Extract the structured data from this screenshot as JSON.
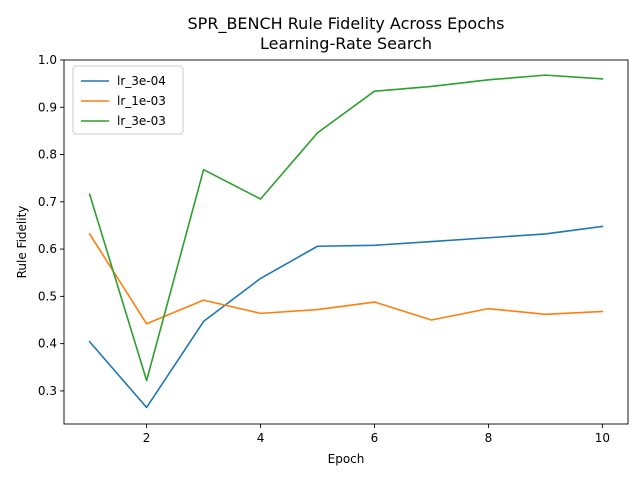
{
  "chart_data": {
    "type": "line",
    "title": "SPR_BENCH Rule Fidelity Across Epochs",
    "subtitle": "Learning-Rate Search",
    "xlabel": "Epoch",
    "ylabel": "Rule Fidelity",
    "xlim": [
      0.55,
      10.45
    ],
    "ylim": [
      0.23,
      1.0
    ],
    "xticks": [
      2,
      4,
      6,
      8,
      10
    ],
    "yticks": [
      0.3,
      0.4,
      0.5,
      0.6,
      0.7,
      0.8,
      0.9,
      1.0
    ],
    "grid": false,
    "legend_position": "top-left",
    "x": [
      1,
      2,
      3,
      4,
      5,
      6,
      7,
      8,
      9,
      10
    ],
    "series": [
      {
        "name": "lr_3e-04",
        "color": "#1f77b4",
        "values": [
          0.404,
          0.265,
          0.447,
          0.538,
          0.606,
          0.608,
          0.616,
          0.624,
          0.632,
          0.648
        ]
      },
      {
        "name": "lr_1e-03",
        "color": "#ff7f0e",
        "values": [
          0.632,
          0.442,
          0.492,
          0.464,
          0.472,
          0.488,
          0.45,
          0.474,
          0.462,
          0.468
        ]
      },
      {
        "name": "lr_3e-03",
        "color": "#2ca02c",
        "values": [
          0.716,
          0.322,
          0.768,
          0.706,
          0.846,
          0.934,
          0.944,
          0.958,
          0.968,
          0.96
        ]
      }
    ]
  }
}
